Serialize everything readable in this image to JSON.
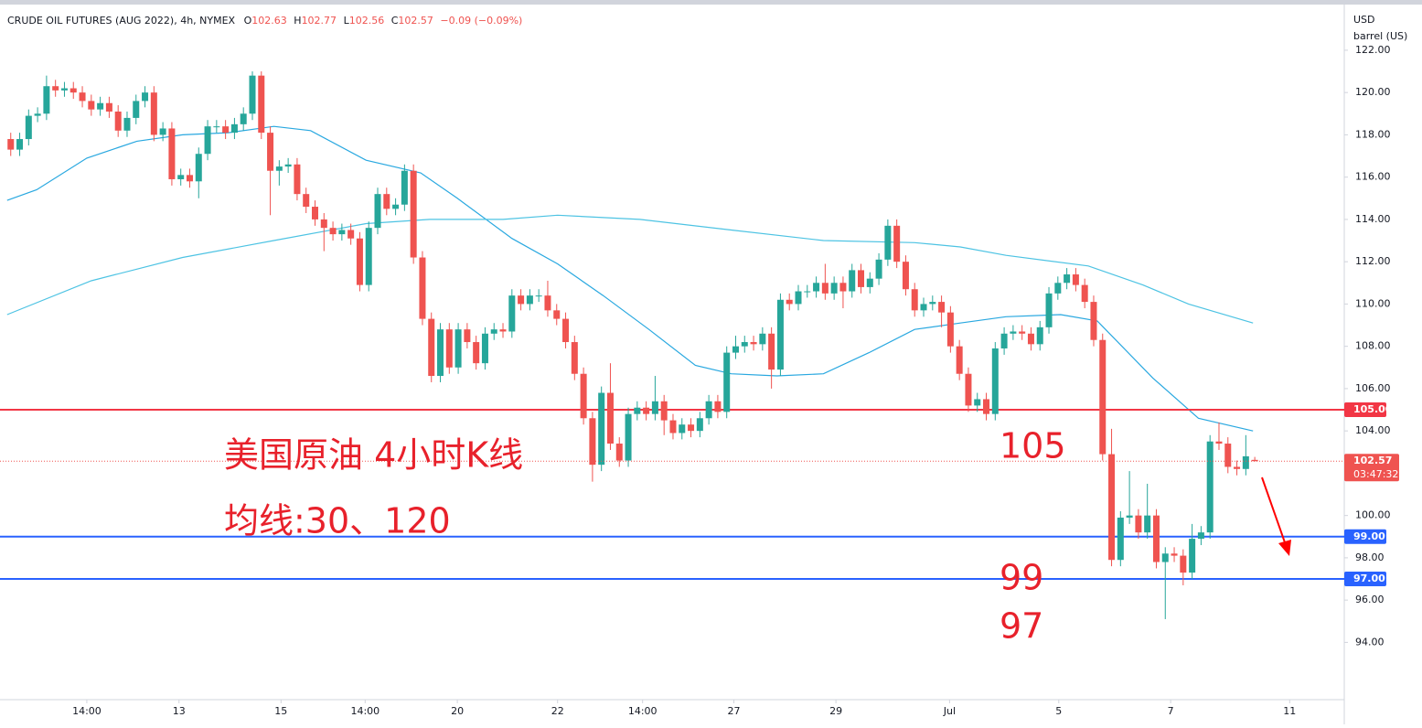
{
  "chart_data": {
    "type": "candlestick",
    "header": {
      "symbol": "CRUDE OIL FUTURES (AUG 2022), 4h, NYMEX",
      "o_label": "O",
      "o": "102.63",
      "h_label": "H",
      "h": "102.77",
      "l_label": "L",
      "l": "102.56",
      "c_label": "C",
      "c": "102.57",
      "change": "−0.09 (−0.09%)"
    },
    "currency": "USD",
    "unit": "barrel (US)",
    "up_color": "#26a69a",
    "down_color": "#ef5350",
    "grid": false,
    "open": [
      117.8,
      117.3,
      117.8,
      118.9,
      119.0,
      120.3,
      120.1,
      120.2,
      120.0,
      119.6,
      119.2,
      119.5,
      119.1,
      118.2,
      118.8,
      119.6,
      120.0,
      118.0,
      118.3,
      115.9,
      116.1,
      115.8,
      117.1,
      118.4,
      118.4,
      118.1,
      118.5,
      119.0,
      120.8,
      118.1,
      116.3,
      116.5,
      116.6,
      115.2,
      114.6,
      114.0,
      113.6,
      113.3,
      113.5,
      113.1,
      110.9,
      113.6,
      115.2,
      114.5,
      114.7,
      116.3,
      112.2,
      109.3,
      106.6,
      108.8,
      107.0,
      108.8,
      108.2,
      107.2,
      108.6,
      108.8,
      108.7,
      110.4,
      110.0,
      110.4,
      110.4,
      109.7,
      109.3,
      108.2,
      106.7,
      104.6,
      102.4,
      105.8,
      103.4,
      102.6,
      104.8,
      105.1,
      104.8,
      105.4,
      104.5,
      103.9,
      104.3,
      104.0,
      104.6,
      105.4,
      104.9,
      107.7,
      108.0,
      108.2,
      108.1,
      108.6,
      106.9,
      110.2,
      110.0,
      110.6,
      110.6,
      111.0,
      110.5,
      111.0,
      110.6,
      111.6,
      110.8,
      111.2,
      112.1,
      113.7,
      112.0,
      110.7,
      109.7,
      110.0,
      110.1,
      109.6,
      108.0,
      106.7,
      105.2,
      105.5,
      104.8,
      107.9,
      108.6,
      108.7,
      108.6,
      108.1,
      108.9,
      110.5,
      111.0,
      111.4,
      110.9,
      110.1,
      108.3,
      102.9,
      97.9,
      99.9,
      100.0,
      99.2,
      100.0,
      97.8,
      98.2,
      98.1,
      97.3,
      98.9,
      99.2,
      103.5,
      103.4,
      102.3,
      102.2,
      102.63
    ],
    "high": [
      118.1,
      118.1,
      119.2,
      119.3,
      120.8,
      120.6,
      120.5,
      120.5,
      120.3,
      119.9,
      119.8,
      119.8,
      119.4,
      119.1,
      119.9,
      120.3,
      120.3,
      118.6,
      118.6,
      116.4,
      116.4,
      117.4,
      118.7,
      118.7,
      118.7,
      118.8,
      119.3,
      121.0,
      121.0,
      118.4,
      116.8,
      116.9,
      116.9,
      115.5,
      114.9,
      114.3,
      113.9,
      113.8,
      113.8,
      113.4,
      113.9,
      115.5,
      115.5,
      115.0,
      116.6,
      116.6,
      112.5,
      109.6,
      109.1,
      109.1,
      109.1,
      109.1,
      108.5,
      108.9,
      109.1,
      109.1,
      110.7,
      110.7,
      110.7,
      110.7,
      111.1,
      110.0,
      109.6,
      108.5,
      107.0,
      104.9,
      106.1,
      107.2,
      103.7,
      105.1,
      105.4,
      105.4,
      106.6,
      105.7,
      104.8,
      104.6,
      104.6,
      104.9,
      105.7,
      105.7,
      108.0,
      108.5,
      108.5,
      108.5,
      108.9,
      108.9,
      110.5,
      110.5,
      110.9,
      110.9,
      111.3,
      111.9,
      111.3,
      111.3,
      111.9,
      111.9,
      111.5,
      112.4,
      114.0,
      114.0,
      112.3,
      111.0,
      110.3,
      110.4,
      110.4,
      109.9,
      108.3,
      107.0,
      105.8,
      105.8,
      108.2,
      108.9,
      109.0,
      109.0,
      108.9,
      109.2,
      110.8,
      111.3,
      111.7,
      111.7,
      111.2,
      110.4,
      108.6,
      104.1,
      100.2,
      102.1,
      100.3,
      101.5,
      100.3,
      98.5,
      98.5,
      98.4,
      99.6,
      99.5,
      103.8,
      104.4,
      103.7,
      102.6,
      103.8,
      102.77
    ],
    "low": [
      117.0,
      117.0,
      117.5,
      118.6,
      118.7,
      119.8,
      119.8,
      119.7,
      119.3,
      118.9,
      118.9,
      118.8,
      117.9,
      117.9,
      118.5,
      119.3,
      117.7,
      117.7,
      115.6,
      115.6,
      115.5,
      115.0,
      116.8,
      118.1,
      117.8,
      117.8,
      118.2,
      118.7,
      117.8,
      114.2,
      115.6,
      116.2,
      114.9,
      114.3,
      113.7,
      112.5,
      113.0,
      113.0,
      112.8,
      110.6,
      110.6,
      113.3,
      114.2,
      114.2,
      114.4,
      111.9,
      109.0,
      106.3,
      106.3,
      106.7,
      106.7,
      107.9,
      106.9,
      106.9,
      108.3,
      108.4,
      108.4,
      109.7,
      109.7,
      110.1,
      109.4,
      109.0,
      107.9,
      106.4,
      104.3,
      101.6,
      102.1,
      103.1,
      102.3,
      102.3,
      104.5,
      104.5,
      104.5,
      103.8,
      103.6,
      103.6,
      103.7,
      103.7,
      104.3,
      104.6,
      104.6,
      107.4,
      107.7,
      107.8,
      107.8,
      106.0,
      106.6,
      109.7,
      109.7,
      110.3,
      110.3,
      110.2,
      110.2,
      109.8,
      110.3,
      110.5,
      110.5,
      110.9,
      111.8,
      111.7,
      110.4,
      109.4,
      109.4,
      109.7,
      108.9,
      107.7,
      106.4,
      104.9,
      104.9,
      104.5,
      104.5,
      107.6,
      108.3,
      108.3,
      107.8,
      107.8,
      108.6,
      110.2,
      110.7,
      110.6,
      109.8,
      108.0,
      102.6,
      97.6,
      97.6,
      99.6,
      98.9,
      98.9,
      97.5,
      95.1,
      97.8,
      96.7,
      97.0,
      98.6,
      98.9,
      103.1,
      102.0,
      101.9,
      101.9,
      102.56
    ],
    "close": [
      117.3,
      117.8,
      118.9,
      119.0,
      120.3,
      120.1,
      120.2,
      120.0,
      119.6,
      119.2,
      119.5,
      119.1,
      118.2,
      118.8,
      119.6,
      120.0,
      118.0,
      118.3,
      115.9,
      116.1,
      115.8,
      117.1,
      118.4,
      118.4,
      118.1,
      118.5,
      119.0,
      120.8,
      118.1,
      116.3,
      116.5,
      116.6,
      115.2,
      114.6,
      114.0,
      113.6,
      113.3,
      113.5,
      113.1,
      110.9,
      113.6,
      115.2,
      114.5,
      114.7,
      116.3,
      112.2,
      109.3,
      106.6,
      108.8,
      107.0,
      108.8,
      108.2,
      107.2,
      108.6,
      108.8,
      108.7,
      110.4,
      110.0,
      110.4,
      110.4,
      109.7,
      109.3,
      108.2,
      106.7,
      104.6,
      102.4,
      105.8,
      103.4,
      102.6,
      104.8,
      105.1,
      104.8,
      105.4,
      104.5,
      103.9,
      104.3,
      104.0,
      104.6,
      105.4,
      104.9,
      107.7,
      108.0,
      108.2,
      108.1,
      108.6,
      106.9,
      110.2,
      110.0,
      110.6,
      110.6,
      111.0,
      110.5,
      111.0,
      110.6,
      111.6,
      110.8,
      111.2,
      112.1,
      113.7,
      112.0,
      110.7,
      109.7,
      110.0,
      110.1,
      109.6,
      108.0,
      106.7,
      105.2,
      105.5,
      104.8,
      107.9,
      108.6,
      108.7,
      108.6,
      108.1,
      108.9,
      110.5,
      111.0,
      111.4,
      110.9,
      110.1,
      108.3,
      102.9,
      97.9,
      99.9,
      100.0,
      99.2,
      100.0,
      97.8,
      98.2,
      98.1,
      97.3,
      98.9,
      99.2,
      103.5,
      103.4,
      102.3,
      102.2,
      102.8,
      102.57
    ],
    "ma_lines": [
      {
        "color": "#29a8e0",
        "x": [
          -0.4,
          2.9,
          8.5,
          14.1,
          19.2,
          24.3,
          29.4,
          33.5,
          39.7,
          45.8,
          49.9,
          56.0,
          61.1,
          66.2,
          71.3,
          76.5,
          80.5,
          85.6,
          90.8,
          95.9,
          101.0,
          106.1,
          111.2,
          117.3,
          121.4,
          127.6,
          132.7,
          138.8
        ],
        "values": [
          114.9,
          115.4,
          116.9,
          117.7,
          118.0,
          118.1,
          118.4,
          118.2,
          116.8,
          116.2,
          115.0,
          113.1,
          111.9,
          110.4,
          108.8,
          107.1,
          106.7,
          106.6,
          106.7,
          107.7,
          108.8,
          109.1,
          109.4,
          109.5,
          109.2,
          106.5,
          104.6,
          104.0
        ]
      },
      {
        "color": "#4dc3e3",
        "x": [
          -0.4,
          9.0,
          19.2,
          29.4,
          39.7,
          46.8,
          55.0,
          61.1,
          70.3,
          80.5,
          90.8,
          101.0,
          106.1,
          111.2,
          120.4,
          126.5,
          131.6,
          138.8
        ],
        "values": [
          109.5,
          111.1,
          112.2,
          113.0,
          113.8,
          114.0,
          114.0,
          114.2,
          114.0,
          113.5,
          113.0,
          112.9,
          112.7,
          112.3,
          111.8,
          110.9,
          110.0,
          109.1
        ]
      }
    ],
    "hlines": [
      {
        "value": 105,
        "label": "105.00",
        "color": "#f23645"
      },
      {
        "value": 99,
        "label": "99.00",
        "color": "#2962ff"
      },
      {
        "value": 97,
        "label": "97.00",
        "color": "#2962ff"
      }
    ],
    "last_price": 102.57,
    "countdown": "03:47:32",
    "xlim": [
      -1.2,
      149
    ],
    "xticks": [
      {
        "value": 8.5,
        "label": "14:00"
      },
      {
        "value": 18.8,
        "label": "13"
      },
      {
        "value": 30.2,
        "label": "15"
      },
      {
        "value": 39.6,
        "label": "14:00"
      },
      {
        "value": 49.9,
        "label": "20"
      },
      {
        "value": 61.1,
        "label": "22"
      },
      {
        "value": 70.6,
        "label": "14:00"
      },
      {
        "value": 80.8,
        "label": "27"
      },
      {
        "value": 92.2,
        "label": "29"
      },
      {
        "value": 104.9,
        "label": "Jul"
      },
      {
        "value": 117.1,
        "label": "5"
      },
      {
        "value": 129.6,
        "label": "7"
      },
      {
        "value": 142.9,
        "label": "11"
      }
    ],
    "ylim": [
      90.125,
      124.375
    ],
    "yticks": [
      {
        "value": 94,
        "label": "94.00"
      },
      {
        "value": 96,
        "label": "96.00"
      },
      {
        "value": 98,
        "label": "98.00"
      },
      {
        "value": 100,
        "label": "100.00"
      },
      {
        "value": 102,
        "label": "102.00"
      },
      {
        "value": 104,
        "label": "104.00"
      },
      {
        "value": 106,
        "label": "106.00"
      },
      {
        "value": 108,
        "label": "108.00"
      },
      {
        "value": 110,
        "label": "110.00"
      },
      {
        "value": 112,
        "label": "112.00"
      },
      {
        "value": 114,
        "label": "114.00"
      },
      {
        "value": 116,
        "label": "116.00"
      },
      {
        "value": 118,
        "label": "118.00"
      },
      {
        "value": 120,
        "label": "120.00"
      },
      {
        "value": 122,
        "label": "122.00"
      }
    ],
    "annotations": {
      "title": "美国原油 4小时K线",
      "ma_note": "均线:30、120",
      "level_105": "105",
      "level_99": "99",
      "level_97": "97"
    }
  }
}
